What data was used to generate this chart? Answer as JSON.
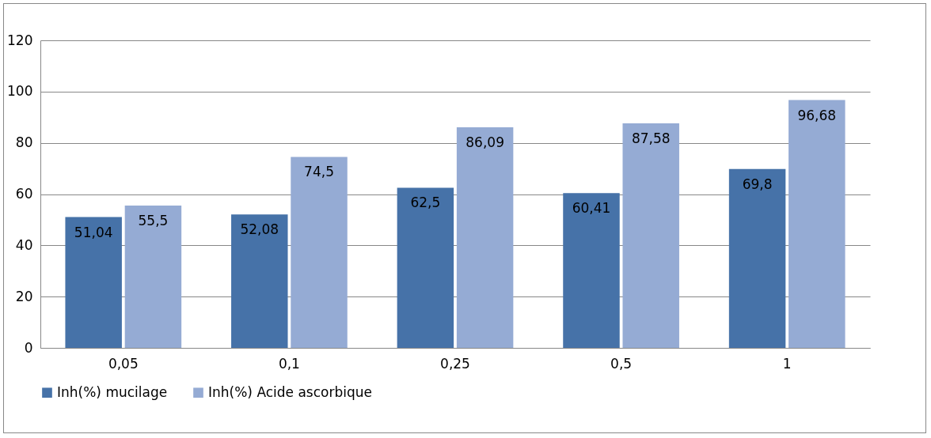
{
  "chart_data": {
    "type": "bar",
    "categories": [
      "0,05",
      "0,1",
      "0,25",
      "0,5",
      "1"
    ],
    "series": [
      {
        "name": "Inh(%) mucilage",
        "color": "#4672a8",
        "values": [
          51.04,
          52.08,
          62.5,
          60.41,
          69.8
        ],
        "value_labels": [
          "51,04",
          "52,08",
          "62,5",
          "60,41",
          "69,8"
        ]
      },
      {
        "name": "Inh(%) Acide ascorbique",
        "color": "#95abd4",
        "values": [
          55.5,
          74.5,
          86.09,
          87.58,
          96.68
        ],
        "value_labels": [
          "55,5",
          "74,5",
          "86,09",
          "87,58",
          "96,68"
        ]
      }
    ],
    "ylim": [
      0,
      120
    ],
    "yticks": [
      0,
      20,
      40,
      60,
      80,
      100,
      120
    ],
    "grid": "y",
    "legend": "bottom"
  }
}
